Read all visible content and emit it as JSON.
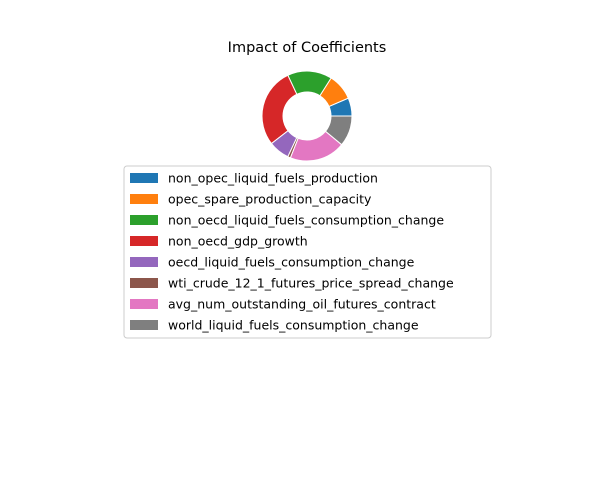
{
  "chart_data": {
    "type": "pie",
    "style": "donut",
    "title": "Impact of Coefficients",
    "legend_position": "below",
    "slices": [
      {
        "label": "non_opec_liquid_fuels_production",
        "value": 0.065,
        "color": "#1f77b4"
      },
      {
        "label": "opec_spare_production_capacity",
        "value": 0.095,
        "color": "#ff7f0e"
      },
      {
        "label": "non_oecd_liquid_fuels_consumption_change",
        "value": 0.16,
        "color": "#2ca02c"
      },
      {
        "label": "non_oecd_gdp_growth",
        "value": 0.285,
        "color": "#d62728"
      },
      {
        "label": "oecd_liquid_fuels_consumption_change",
        "value": 0.075,
        "color": "#9467bd"
      },
      {
        "label": "wti_crude_12_1_futures_price_spread_change",
        "value": 0.01,
        "color": "#8c564b"
      },
      {
        "label": "avg_num_outstanding_oil_futures_contract",
        "value": 0.2,
        "color": "#e377c2"
      },
      {
        "label": "world_liquid_fuels_consumption_change",
        "value": 0.11,
        "color": "#7f7f7f"
      }
    ]
  }
}
